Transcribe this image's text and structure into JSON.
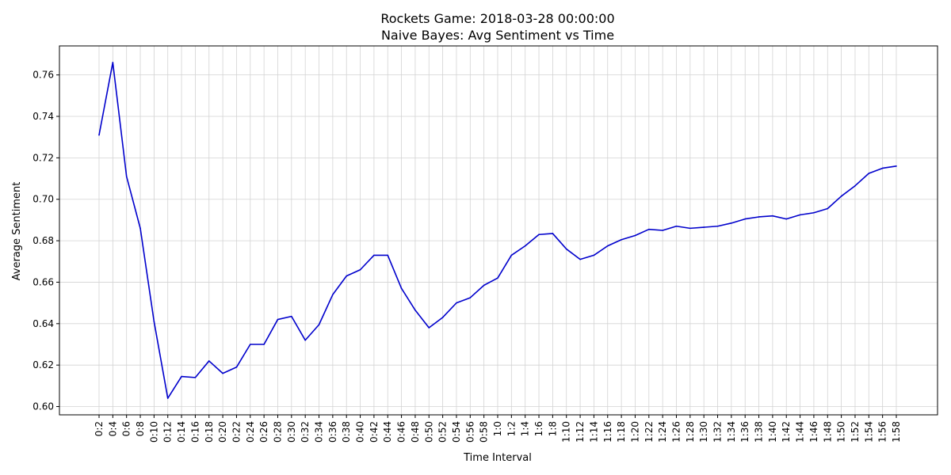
{
  "chart_data": {
    "type": "line",
    "title": "Rockets Game: 2018-03-28 00:00:00",
    "subtitle": "Naive Bayes: Avg Sentiment vs Time",
    "xlabel": "Time Interval",
    "ylabel": "Average Sentiment",
    "ylim": [
      0.596,
      0.774
    ],
    "yticks": [
      0.6,
      0.62,
      0.64,
      0.66,
      0.68,
      0.7,
      0.72,
      0.74,
      0.76
    ],
    "ytick_labels": [
      "0.60",
      "0.62",
      "0.64",
      "0.66",
      "0.68",
      "0.70",
      "0.72",
      "0.74",
      "0.76"
    ],
    "grid": true,
    "line_color": "#0000cc",
    "categories": [
      "0:2",
      "0:4",
      "0:6",
      "0:8",
      "0:10",
      "0:12",
      "0:14",
      "0:16",
      "0:18",
      "0:20",
      "0:22",
      "0:24",
      "0:26",
      "0:28",
      "0:30",
      "0:32",
      "0:34",
      "0:36",
      "0:38",
      "0:40",
      "0:42",
      "0:44",
      "0:46",
      "0:48",
      "0:50",
      "0:52",
      "0:54",
      "0:56",
      "0:58",
      "1:0",
      "1:2",
      "1:4",
      "1:6",
      "1:8",
      "1:10",
      "1:12",
      "1:14",
      "1:16",
      "1:18",
      "1:20",
      "1:22",
      "1:24",
      "1:26",
      "1:28",
      "1:30",
      "1:32",
      "1:34",
      "1:36",
      "1:38",
      "1:40",
      "1:42",
      "1:44",
      "1:46",
      "1:48",
      "1:50",
      "1:52",
      "1:54",
      "1:56",
      "1:58"
    ],
    "values": [
      0.731,
      0.766,
      0.711,
      0.686,
      0.641,
      0.604,
      0.6145,
      0.614,
      0.622,
      0.616,
      0.619,
      0.63,
      0.63,
      0.642,
      0.6435,
      0.632,
      0.6395,
      0.654,
      0.663,
      0.666,
      0.673,
      0.673,
      0.657,
      0.6465,
      0.638,
      0.643,
      0.65,
      0.6525,
      0.6585,
      0.662,
      0.673,
      0.6775,
      0.683,
      0.6835,
      0.676,
      0.671,
      0.673,
      0.6775,
      0.6805,
      0.6825,
      0.6855,
      0.685,
      0.687,
      0.686,
      0.6865,
      0.687,
      0.6885,
      0.6905,
      0.6915,
      0.692,
      0.6905,
      0.6925,
      0.6935,
      0.6955,
      0.7015,
      0.7065,
      0.7125,
      0.715,
      0.716
    ]
  }
}
